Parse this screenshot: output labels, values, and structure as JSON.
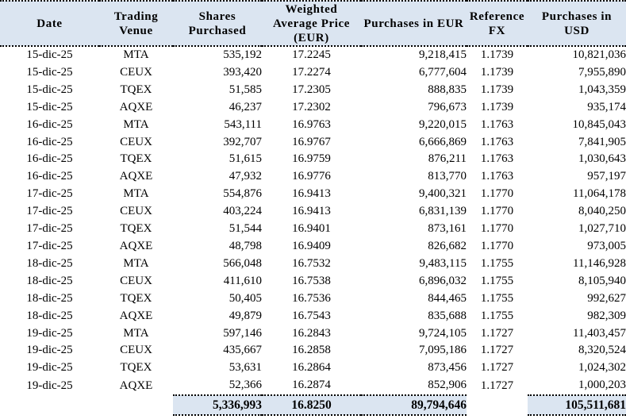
{
  "colors": {
    "header_bg": "#dbe5f1",
    "totals_bg": "#dbe5f1",
    "text": "#000000"
  },
  "table": {
    "headers": [
      "Date",
      "Trading Venue",
      "Shares Purchased",
      "Weighted Average Price (EUR)",
      "Purchases in EUR",
      "Reference FX",
      "Purchases in USD"
    ],
    "rows": [
      [
        "15-dic-25",
        "MTA",
        "535,192",
        "17.2245",
        "9,218,415",
        "1.1739",
        "10,821,036"
      ],
      [
        "15-dic-25",
        "CEUX",
        "393,420",
        "17.2274",
        "6,777,604",
        "1.1739",
        "7,955,890"
      ],
      [
        "15-dic-25",
        "TQEX",
        "51,585",
        "17.2305",
        "888,835",
        "1.1739",
        "1,043,359"
      ],
      [
        "15-dic-25",
        "AQXE",
        "46,237",
        "17.2302",
        "796,673",
        "1.1739",
        "935,174"
      ],
      [
        "16-dic-25",
        "MTA",
        "543,111",
        "16.9763",
        "9,220,015",
        "1.1763",
        "10,845,043"
      ],
      [
        "16-dic-25",
        "CEUX",
        "392,707",
        "16.9767",
        "6,666,869",
        "1.1763",
        "7,841,905"
      ],
      [
        "16-dic-25",
        "TQEX",
        "51,615",
        "16.9759",
        "876,211",
        "1.1763",
        "1,030,643"
      ],
      [
        "16-dic-25",
        "AQXE",
        "47,932",
        "16.9776",
        "813,770",
        "1.1763",
        "957,197"
      ],
      [
        "17-dic-25",
        "MTA",
        "554,876",
        "16.9413",
        "9,400,321",
        "1.1770",
        "11,064,178"
      ],
      [
        "17-dic-25",
        "CEUX",
        "403,224",
        "16.9413",
        "6,831,139",
        "1.1770",
        "8,040,250"
      ],
      [
        "17-dic-25",
        "TQEX",
        "51,544",
        "16.9401",
        "873,161",
        "1.1770",
        "1,027,710"
      ],
      [
        "17-dic-25",
        "AQXE",
        "48,798",
        "16.9409",
        "826,682",
        "1.1770",
        "973,005"
      ],
      [
        "18-dic-25",
        "MTA",
        "566,048",
        "16.7532",
        "9,483,115",
        "1.1755",
        "11,146,928"
      ],
      [
        "18-dic-25",
        "CEUX",
        "411,610",
        "16.7538",
        "6,896,032",
        "1.1755",
        "8,105,940"
      ],
      [
        "18-dic-25",
        "TQEX",
        "50,405",
        "16.7536",
        "844,465",
        "1.1755",
        "992,627"
      ],
      [
        "18-dic-25",
        "AQXE",
        "49,879",
        "16.7543",
        "835,688",
        "1.1755",
        "982,309"
      ],
      [
        "19-dic-25",
        "MTA",
        "597,146",
        "16.2843",
        "9,724,105",
        "1.1727",
        "11,403,457"
      ],
      [
        "19-dic-25",
        "CEUX",
        "435,667",
        "16.2858",
        "7,095,186",
        "1.1727",
        "8,320,524"
      ],
      [
        "19-dic-25",
        "TQEX",
        "53,631",
        "16.2864",
        "873,456",
        "1.1727",
        "1,024,302"
      ],
      [
        "19-dic-25",
        "AQXE",
        "52,366",
        "16.2874",
        "852,906",
        "1.1727",
        "1,000,203"
      ]
    ],
    "totals": {
      "shares": "5,336,993",
      "avg_price": "16.8250",
      "eur": "89,794,646",
      "usd": "105,511,681"
    }
  }
}
